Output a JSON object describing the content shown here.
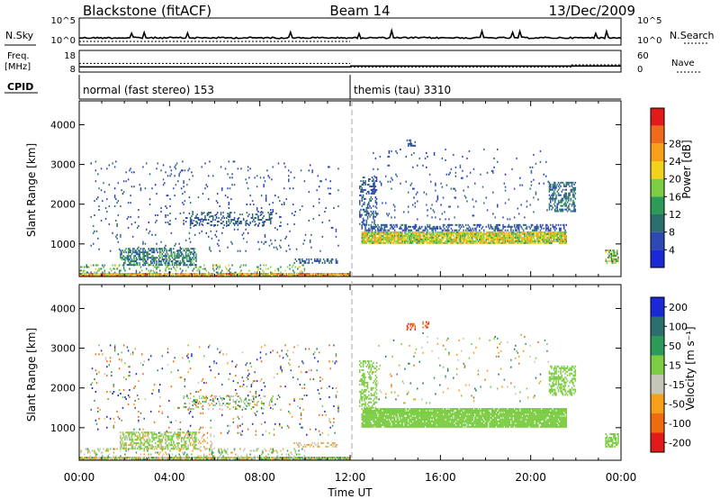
{
  "header": {
    "station": "Blackstone (fitACF)",
    "beam": "Beam 14",
    "date": "13/Dec/2009"
  },
  "panel_labels": {
    "nsky": "N.Sky",
    "nsearch": "N.Search",
    "freq_line1": "Freq.",
    "freq_line2": "[MHz]",
    "nave": "Nave",
    "cpid": "CPID"
  },
  "colors": {
    "power": [
      "#1a28d8",
      "#2e48b4",
      "#2c6e6e",
      "#2e9a5a",
      "#7ccc44",
      "#f2d21a",
      "#f5a018",
      "#ef6a1a",
      "#e31a1a"
    ],
    "velocity": [
      "#e31a1a",
      "#f06a10",
      "#f5a018",
      "#c6c6b8",
      "#7ccc44",
      "#2e9a5a",
      "#2c6e6e",
      "#1a28d8"
    ]
  },
  "chart_data": [
    {
      "type": "line",
      "name": "noise",
      "left_ticks": [
        "10^5",
        "10^0"
      ],
      "right_ticks": [
        "10^5",
        "10^0"
      ],
      "ylabel_left": "N.Sky",
      "ylabel_right": "N.Search"
    },
    {
      "type": "line",
      "name": "frequency",
      "left_ticks": [
        "18",
        "8"
      ],
      "right_ticks": [
        "60",
        "0"
      ],
      "ylabel_left": "Freq. [MHz]",
      "ylabel_right": "Nave",
      "freq_segments": [
        {
          "x0": 0.0,
          "x1": 12.0,
          "freq_mhz": 10.4
        },
        {
          "x0": 12.0,
          "x1": 24.0,
          "freq_mhz": 10.8
        }
      ],
      "nave_segments": [
        {
          "x0": 0.0,
          "x1": 12.0,
          "nave": 24
        },
        {
          "x0": 12.0,
          "x1": 21.8,
          "nave": 14
        },
        {
          "x0": 21.8,
          "x1": 24.0,
          "nave": 20
        }
      ]
    },
    {
      "type": "table",
      "name": "cpid",
      "segments": [
        {
          "start": 0.0,
          "end": 12.0,
          "label": "normal (fast stereo) 153"
        },
        {
          "start": 12.0,
          "end": 24.0,
          "label": "themis (tau) 3310"
        }
      ]
    },
    {
      "type": "heatmap",
      "name": "power",
      "ylabel": "Slant Range [km]",
      "yticks": [
        1000,
        2000,
        3000,
        4000
      ],
      "ylim": [
        180,
        4600
      ],
      "xlim": [
        0,
        24
      ],
      "colorbar_label": "Power [dB]",
      "colorbar_ticks": [
        "4",
        "8",
        "12",
        "16",
        "20",
        "24",
        "28"
      ],
      "clim": [
        0,
        30
      ],
      "regions": [
        {
          "t": [
            0.0,
            12.0
          ],
          "r": [
            180,
            260
          ],
          "v": [
            14,
            28
          ],
          "d": 0.9
        },
        {
          "t": [
            0.0,
            10.0
          ],
          "r": [
            260,
            480
          ],
          "v": [
            6,
            18
          ],
          "d": 0.18
        },
        {
          "t": [
            1.8,
            5.2
          ],
          "r": [
            450,
            900
          ],
          "v": [
            4,
            14
          ],
          "d": 0.55
        },
        {
          "t": [
            9.5,
            11.5
          ],
          "r": [
            500,
            650
          ],
          "v": [
            4,
            10
          ],
          "d": 0.35
        },
        {
          "t": [
            4.6,
            8.6
          ],
          "r": [
            1450,
            1800
          ],
          "v": [
            4,
            10
          ],
          "d": 0.25
        },
        {
          "t": [
            0.5,
            11.5
          ],
          "r": [
            800,
            3100
          ],
          "v": [
            3,
            8
          ],
          "d": 0.035
        },
        {
          "t": [
            12.5,
            21.6
          ],
          "r": [
            1000,
            1320
          ],
          "v": [
            12,
            22
          ],
          "d": 0.9
        },
        {
          "t": [
            12.5,
            21.6
          ],
          "r": [
            1320,
            1480
          ],
          "v": [
            3,
            9
          ],
          "d": 0.45
        },
        {
          "t": [
            12.4,
            13.2
          ],
          "r": [
            1480,
            2700
          ],
          "v": [
            3,
            9
          ],
          "d": 0.35
        },
        {
          "t": [
            20.8,
            22.0
          ],
          "r": [
            1800,
            2550
          ],
          "v": [
            4,
            12
          ],
          "d": 0.5
        },
        {
          "t": [
            13.0,
            20.8
          ],
          "r": [
            1600,
            3400
          ],
          "v": [
            3,
            8
          ],
          "d": 0.03
        },
        {
          "t": [
            14.5,
            14.9
          ],
          "r": [
            3450,
            3650
          ],
          "v": [
            3,
            8
          ],
          "d": 0.5
        },
        {
          "t": [
            23.3,
            23.9
          ],
          "r": [
            500,
            850
          ],
          "v": [
            8,
            22
          ],
          "d": 0.55
        }
      ]
    },
    {
      "type": "heatmap",
      "name": "velocity",
      "ylabel": "Slant Range [km]",
      "yticks": [
        1000,
        2000,
        3000,
        4000
      ],
      "ylim": [
        180,
        4600
      ],
      "xlim": [
        0,
        24
      ],
      "xticks": [
        "00:00",
        "04:00",
        "08:00",
        "12:00",
        "16:00",
        "20:00",
        "00:00"
      ],
      "xlabel": "Time UT",
      "colorbar_label": "Velocity [m s⁻¹]",
      "colorbar_ticks": [
        "-200",
        "-100",
        "-50",
        "-15",
        "15",
        "50",
        "100",
        "200"
      ],
      "clim": [
        -250,
        250
      ],
      "regions": [
        {
          "t": [
            0.0,
            12.0
          ],
          "r": [
            180,
            260
          ],
          "v": [
            -90,
            40
          ],
          "d": 0.9
        },
        {
          "t": [
            0.0,
            10.0
          ],
          "r": [
            260,
            480
          ],
          "v": [
            -80,
            40
          ],
          "d": 0.18
        },
        {
          "t": [
            1.8,
            5.2
          ],
          "r": [
            450,
            900
          ],
          "v": [
            -14,
            12
          ],
          "d": 0.45
        },
        {
          "t": [
            1.8,
            6.0
          ],
          "r": [
            450,
            900
          ],
          "v": [
            -70,
            -20
          ],
          "d": 0.15
        },
        {
          "t": [
            9.5,
            11.5
          ],
          "r": [
            500,
            650
          ],
          "v": [
            -90,
            -20
          ],
          "d": 0.35
        },
        {
          "t": [
            4.6,
            8.6
          ],
          "r": [
            1450,
            1800
          ],
          "v": [
            -60,
            40
          ],
          "d": 0.25
        },
        {
          "t": [
            0.5,
            11.5
          ],
          "r": [
            800,
            3100
          ],
          "v": [
            -200,
            200
          ],
          "d": 0.035
        },
        {
          "t": [
            12.5,
            21.6
          ],
          "r": [
            1000,
            1480
          ],
          "v": [
            -14,
            14
          ],
          "d": 0.9
        },
        {
          "t": [
            12.4,
            13.2
          ],
          "r": [
            1480,
            2700
          ],
          "v": [
            -14,
            14
          ],
          "d": 0.35
        },
        {
          "t": [
            20.8,
            22.0
          ],
          "r": [
            1800,
            2550
          ],
          "v": [
            -14,
            14
          ],
          "d": 0.5
        },
        {
          "t": [
            13.0,
            20.8
          ],
          "r": [
            1600,
            3400
          ],
          "v": [
            -120,
            80
          ],
          "d": 0.02
        },
        {
          "t": [
            14.5,
            14.9
          ],
          "r": [
            3450,
            3650
          ],
          "v": [
            -230,
            -180
          ],
          "d": 0.5
        },
        {
          "t": [
            15.2,
            15.5
          ],
          "r": [
            3500,
            3700
          ],
          "v": [
            -230,
            -160
          ],
          "d": 0.4
        },
        {
          "t": [
            23.3,
            23.9
          ],
          "r": [
            500,
            850
          ],
          "v": [
            -14,
            14
          ],
          "d": 0.55
        }
      ]
    }
  ]
}
